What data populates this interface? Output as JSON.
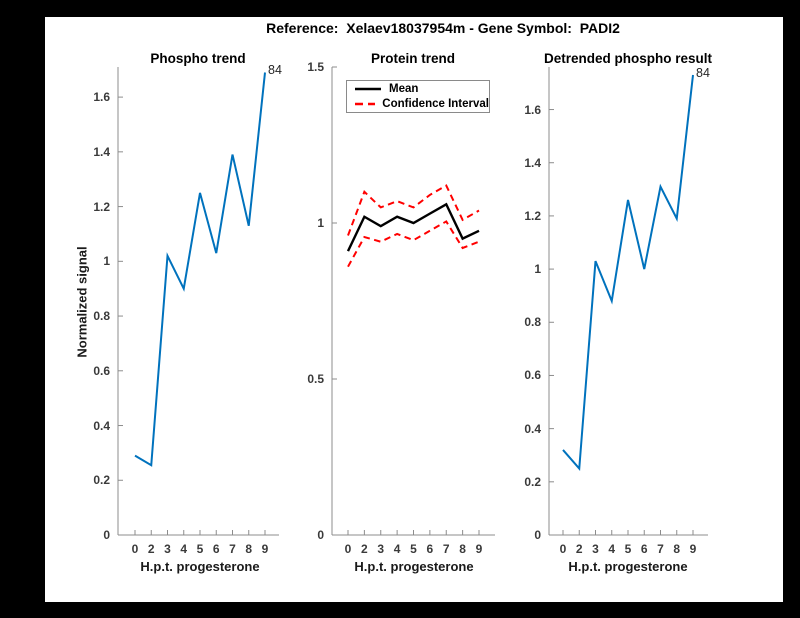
{
  "figure": {
    "title": "Reference:  Xelaev18037954m - Gene Symbol:  PADI2",
    "background_color": "#ffffff",
    "frame_color": "#000000",
    "axis_color": "#8c8c8c"
  },
  "chart_data": [
    {
      "type": "line",
      "title": "Phospho trend",
      "xlabel": "H.p.t. progesterone",
      "ylabel": "Normalized signal",
      "x_tick_labels": [
        "0",
        "2",
        "3",
        "4",
        "5",
        "6",
        "7",
        "8",
        "9"
      ],
      "y_ticks": [
        0,
        0.2,
        0.4,
        0.6,
        0.8,
        1,
        1.2,
        1.4,
        1.6
      ],
      "y_tick_labels": [
        "0",
        "0.2",
        "0.4",
        "0.6",
        "0.8",
        "1",
        "1.2",
        "1.4",
        "1.6"
      ],
      "ylim": [
        0,
        1.71
      ],
      "grid": false,
      "series": [
        {
          "name": "phospho-signal",
          "color": "#0072BD",
          "line_style": "solid",
          "values": [
            0.29,
            0.255,
            1.02,
            0.9,
            1.25,
            1.03,
            1.39,
            1.13,
            1.69
          ]
        }
      ],
      "annotation": {
        "text": "84",
        "at_last_point": true
      }
    },
    {
      "type": "line",
      "title": "Protein trend",
      "xlabel": "H.p.t. progesterone",
      "ylabel": "",
      "x_tick_labels": [
        "0",
        "2",
        "3",
        "4",
        "5",
        "6",
        "7",
        "8",
        "9"
      ],
      "y_ticks": [
        0,
        0.5,
        1,
        1.5
      ],
      "y_tick_labels": [
        "0",
        "0.5",
        "1",
        "1.5"
      ],
      "ylim": [
        0,
        1.5
      ],
      "grid": false,
      "legend": {
        "position": "top-left",
        "entries": [
          {
            "label": "Mean",
            "color": "#000000",
            "line_style": "solid"
          },
          {
            "label": "Confidence Interval",
            "color": "#FF0000",
            "line_style": "dashed"
          }
        ]
      },
      "series": [
        {
          "name": "mean",
          "color": "#000000",
          "line_style": "solid",
          "values": [
            0.91,
            1.02,
            0.99,
            1.02,
            1.0,
            1.03,
            1.06,
            0.95,
            0.975
          ]
        },
        {
          "name": "ci-upper",
          "color": "#FF0000",
          "line_style": "dashed",
          "values": [
            0.96,
            1.1,
            1.05,
            1.07,
            1.05,
            1.09,
            1.12,
            1.01,
            1.04
          ]
        },
        {
          "name": "ci-lower",
          "color": "#FF0000",
          "line_style": "dashed",
          "values": [
            0.86,
            0.955,
            0.94,
            0.965,
            0.945,
            0.975,
            1.005,
            0.92,
            0.94
          ]
        }
      ]
    },
    {
      "type": "line",
      "title": "Detrended phospho result",
      "xlabel": "H.p.t. progesterone",
      "ylabel": "",
      "x_tick_labels": [
        "0",
        "2",
        "3",
        "4",
        "5",
        "6",
        "7",
        "8",
        "9"
      ],
      "y_ticks": [
        0,
        0.2,
        0.4,
        0.6,
        0.8,
        1,
        1.2,
        1.4,
        1.6
      ],
      "y_tick_labels": [
        "0",
        "0.2",
        "0.4",
        "0.6",
        "0.8",
        "1",
        "1.2",
        "1.4",
        "1.6"
      ],
      "ylim": [
        0,
        1.76
      ],
      "grid": false,
      "series": [
        {
          "name": "detrended-phospho",
          "color": "#0072BD",
          "line_style": "solid",
          "values": [
            0.32,
            0.25,
            1.03,
            0.88,
            1.26,
            1.0,
            1.31,
            1.19,
            1.73
          ]
        }
      ],
      "annotation": {
        "text": "84",
        "at_last_point": true
      }
    }
  ]
}
